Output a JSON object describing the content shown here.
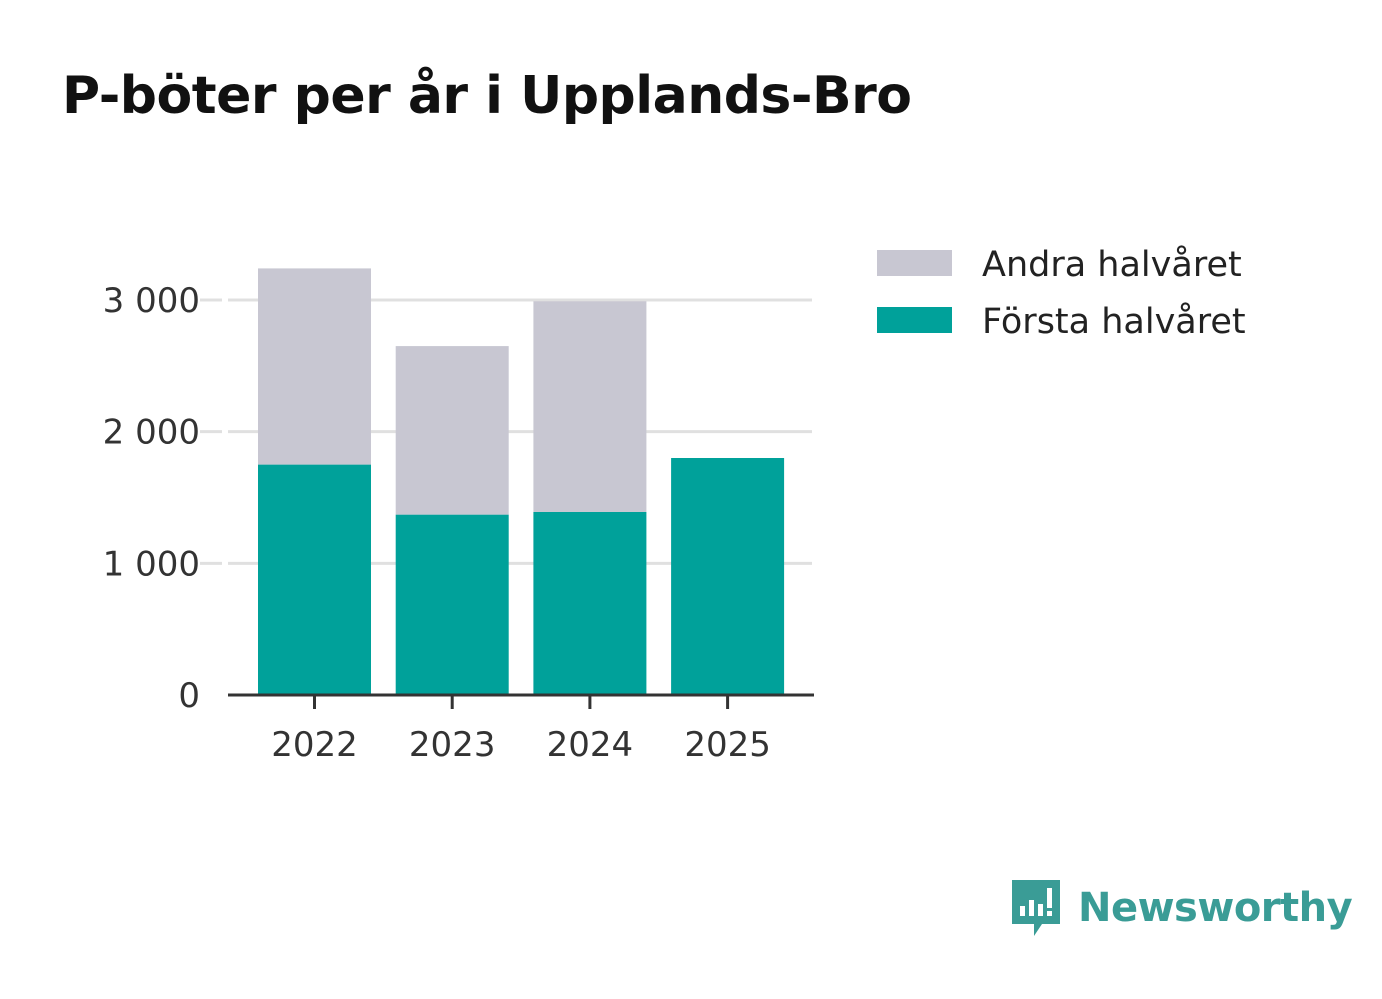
{
  "chart_data": {
    "type": "bar",
    "stacked": true,
    "title": "P-böter per år i Upplands-Bro",
    "categories": [
      "2022",
      "2023",
      "2024",
      "2025"
    ],
    "series": [
      {
        "name": "Första halvåret",
        "color": "#00a19a",
        "values": [
          1750,
          1370,
          1390,
          1800
        ]
      },
      {
        "name": "Andra halvåret",
        "color": "#c8c7d2",
        "values": [
          1490,
          1280,
          1600,
          0
        ]
      }
    ],
    "legend_order": [
      "Andra halvåret",
      "Första halvåret"
    ],
    "yticks": [
      0,
      1000,
      2000,
      3000
    ],
    "ytick_labels": [
      "0",
      "1 000",
      "2 000",
      "3 000"
    ],
    "ylim": [
      0,
      3000
    ],
    "xlabel": "",
    "ylabel": "",
    "grid": true,
    "legend_position": "right"
  },
  "brand": {
    "name": "Newsworthy",
    "color": "#3a9c96",
    "icon": "newsworthy-logo-icon"
  }
}
